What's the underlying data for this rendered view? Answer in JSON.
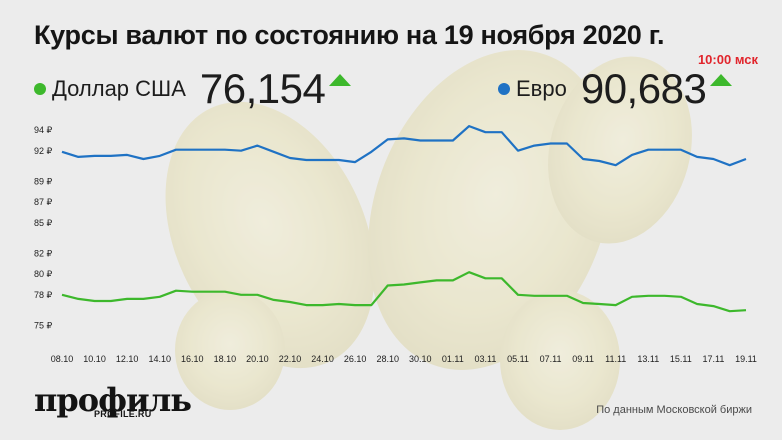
{
  "title": "Курсы валют по состоянию на 19 ноября 2020 г.",
  "time_label": "10:00 мск",
  "legend": [
    {
      "label": "Доллар США",
      "value": "76,154",
      "color": "#3db82c"
    },
    {
      "label": "Евро",
      "value": "90,683",
      "color": "#1f72c4"
    }
  ],
  "footer": {
    "logo_text": "профиль",
    "logo_sub": "PROFILE.RU",
    "source": "По данным Московской биржи"
  },
  "colors": {
    "usd": "#3db82c",
    "eur": "#1f72c4",
    "arrow_up": "#3db82c",
    "time": "#e1252c"
  },
  "chart_data": {
    "type": "line",
    "x": [
      "08.10",
      "09.10",
      "10.10",
      "11.10",
      "12.10",
      "13.10",
      "14.10",
      "15.10",
      "16.10",
      "17.10",
      "18.10",
      "19.10",
      "20.10",
      "21.10",
      "22.10",
      "23.10",
      "24.10",
      "25.10",
      "26.10",
      "27.10",
      "28.10",
      "29.10",
      "30.10",
      "31.10",
      "01.11",
      "02.11",
      "03.11",
      "04.11",
      "05.11",
      "06.11",
      "07.11",
      "08.11",
      "09.11",
      "10.11",
      "11.11",
      "12.11",
      "13.11",
      "14.11",
      "15.11",
      "16.11",
      "17.11",
      "18.11",
      "19.11"
    ],
    "x_tick_labels": [
      "08.10",
      "10.10",
      "12.10",
      "14.10",
      "16.10",
      "18.10",
      "20.10",
      "22.10",
      "24.10",
      "26.10",
      "28.10",
      "30.10",
      "01.11",
      "03.11",
      "05.11",
      "07.11",
      "09.11",
      "11.11",
      "13.11",
      "15.11",
      "17.11",
      "19.11"
    ],
    "y_tick_values": [
      75,
      78,
      80,
      82,
      85,
      87,
      89,
      92,
      94
    ],
    "y_tick_labels": [
      "75 ₽",
      "78 ₽",
      "80 ₽",
      "82 ₽",
      "85 ₽",
      "87 ₽",
      "89 ₽",
      "92 ₽",
      "94 ₽"
    ],
    "ylim": [
      73.8,
      94.6
    ],
    "grid": false,
    "legend_position": "top",
    "series": [
      {
        "name": "Евро",
        "color": "#1f72c4",
        "values": [
          91.9,
          91.4,
          91.5,
          91.5,
          91.6,
          91.2,
          91.5,
          92.1,
          92.1,
          92.1,
          92.1,
          92.0,
          92.5,
          91.9,
          91.3,
          91.1,
          91.1,
          91.1,
          90.9,
          91.9,
          93.1,
          93.2,
          93.0,
          93.0,
          93.0,
          94.4,
          93.8,
          93.8,
          92.0,
          92.5,
          92.7,
          92.7,
          91.2,
          91.0,
          90.6,
          91.6,
          92.1,
          92.1,
          92.1,
          91.4,
          91.2,
          90.6,
          91.2
        ]
      },
      {
        "name": "Доллар США",
        "color": "#3db82c",
        "values": [
          78.0,
          77.6,
          77.4,
          77.4,
          77.6,
          77.6,
          77.8,
          78.4,
          78.3,
          78.3,
          78.3,
          78.0,
          78.0,
          77.5,
          77.3,
          77.0,
          77.0,
          77.1,
          77.0,
          77.0,
          78.9,
          79.0,
          79.2,
          79.4,
          79.4,
          80.2,
          79.6,
          79.6,
          78.0,
          77.9,
          77.9,
          77.9,
          77.2,
          77.1,
          77.0,
          77.8,
          77.9,
          77.9,
          77.8,
          77.1,
          76.9,
          76.4,
          76.5
        ]
      }
    ]
  }
}
